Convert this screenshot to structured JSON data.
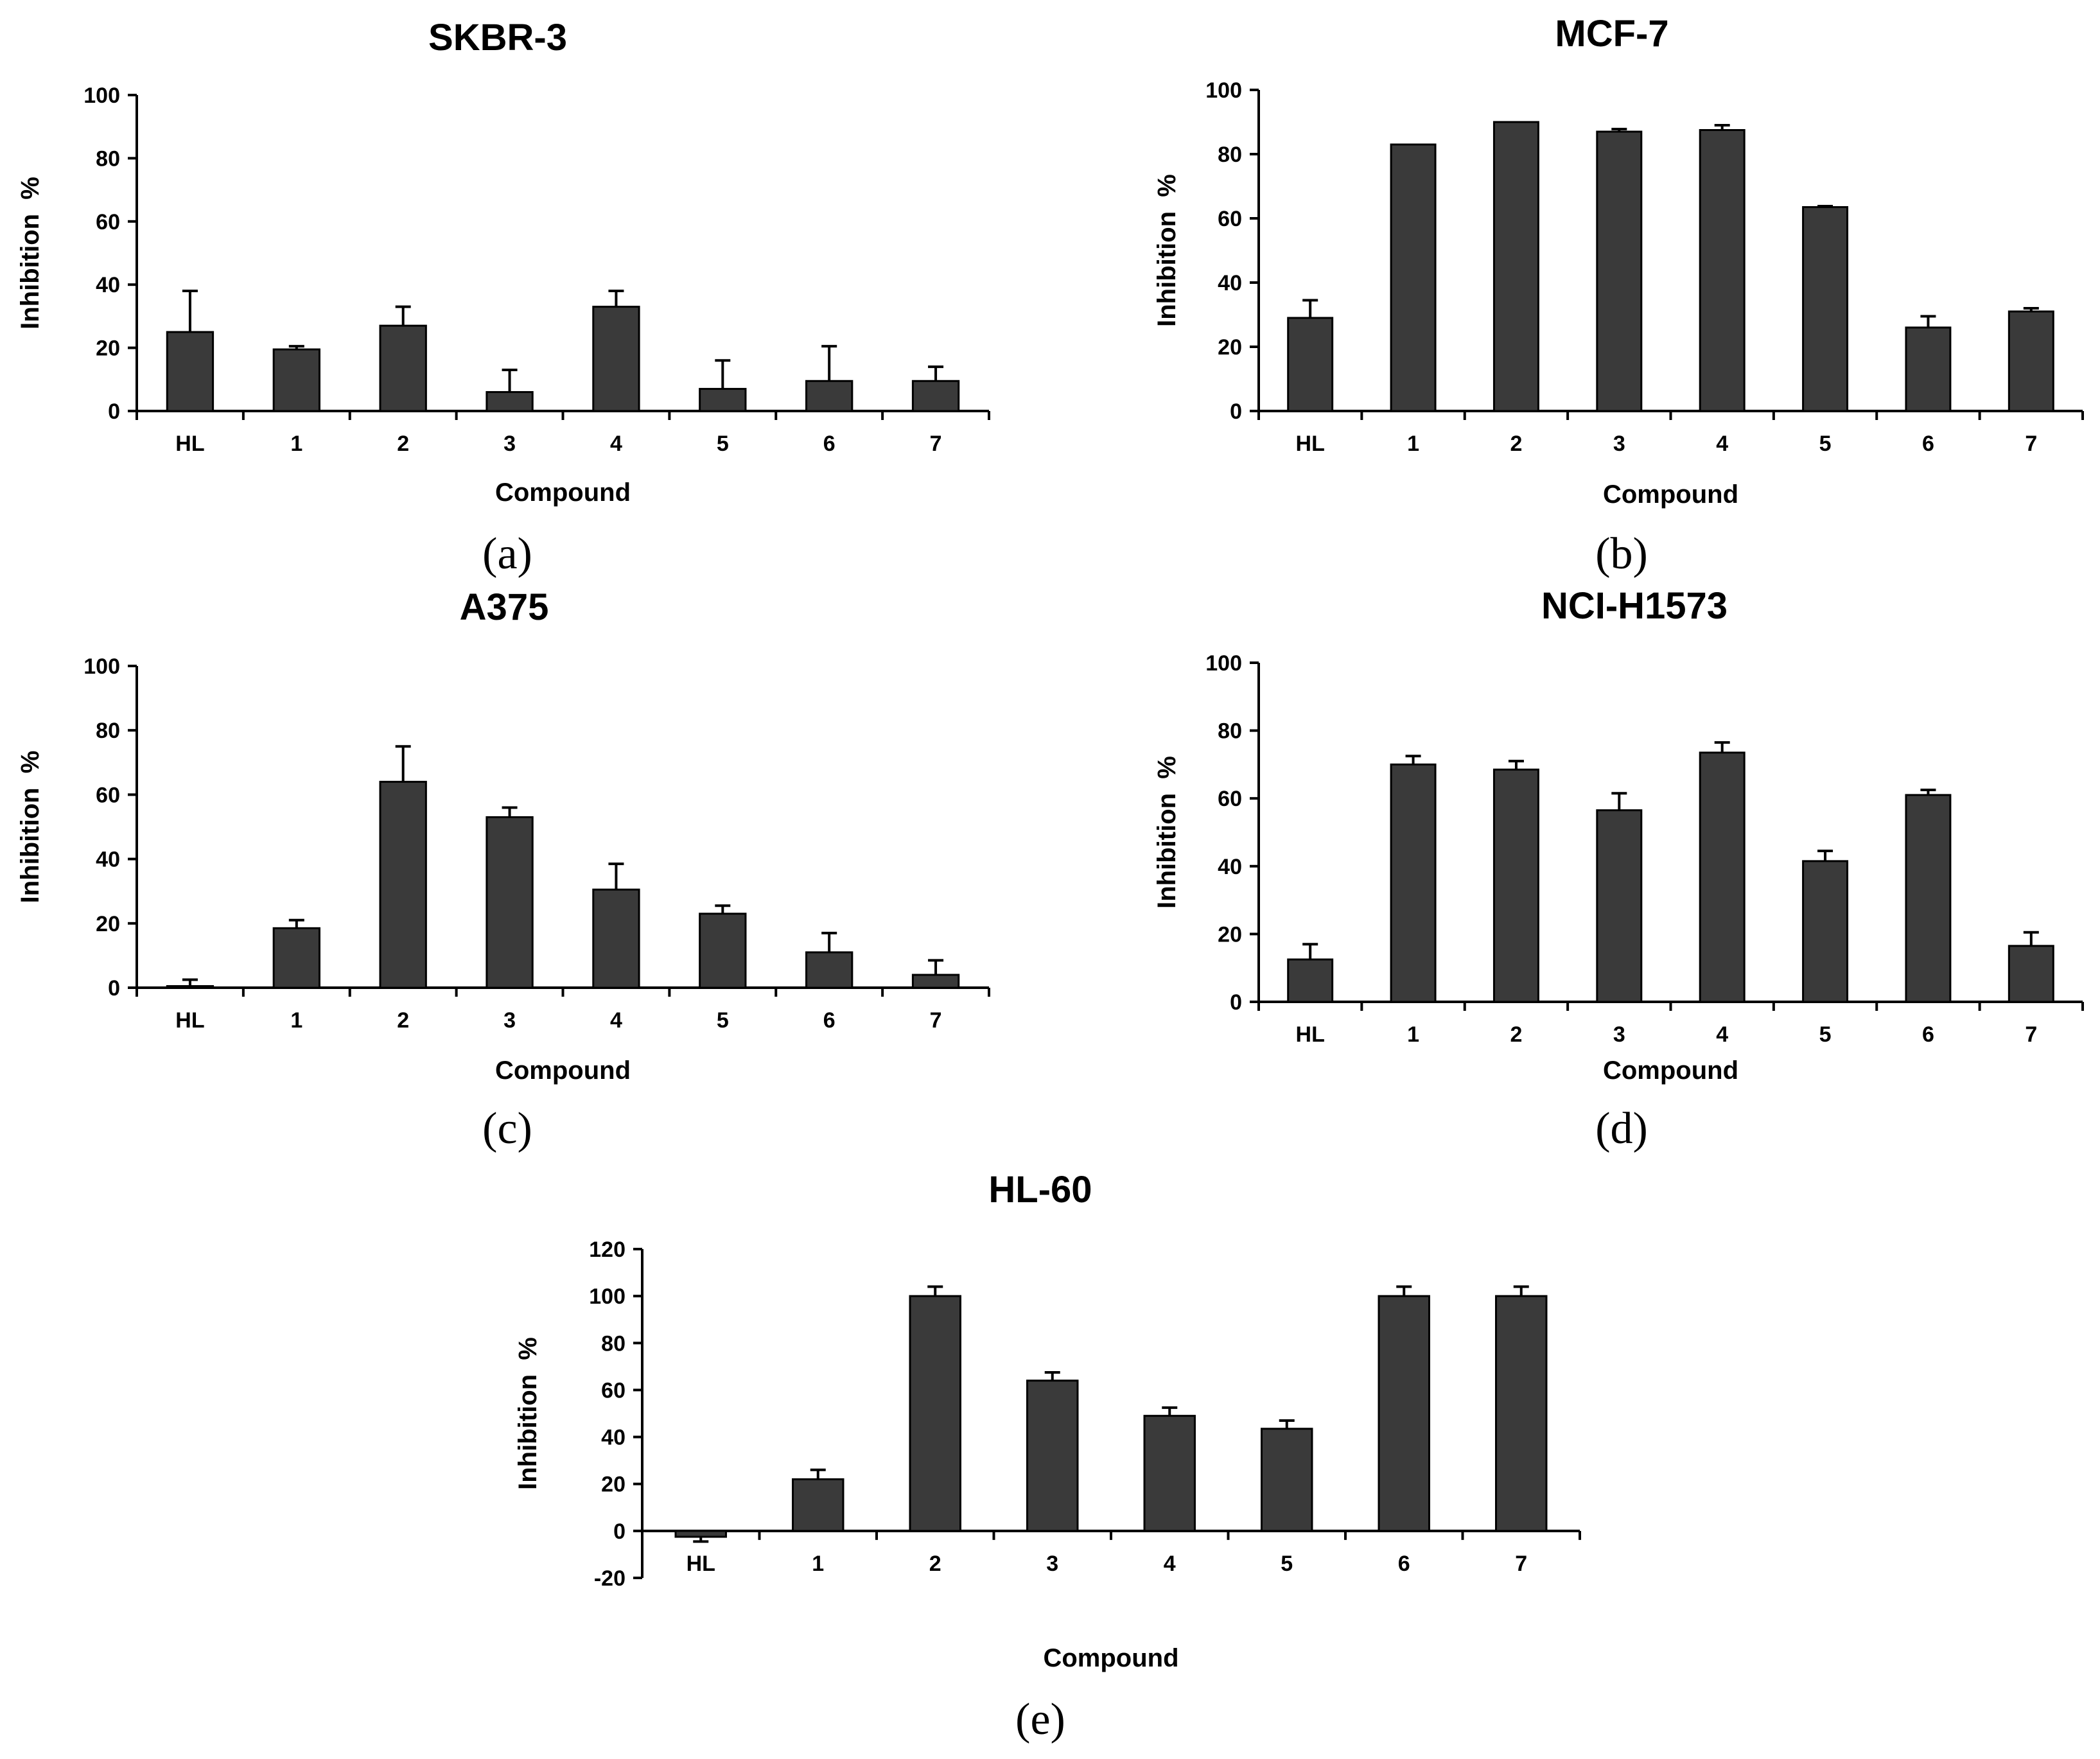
{
  "chart_data": [
    {
      "type": "bar",
      "title": "SKBR-3",
      "panel_label": "(a)",
      "xlabel": "Compound",
      "ylabel": "Inhibition  %",
      "categories": [
        "HL",
        "1",
        "2",
        "3",
        "4",
        "5",
        "6",
        "7"
      ],
      "values": [
        25,
        19.5,
        27,
        6,
        33,
        7,
        9.5,
        9.5
      ],
      "errors": [
        13,
        1,
        6,
        7,
        5,
        9,
        11,
        4.5
      ],
      "ylim": [
        0,
        100
      ],
      "yticks": [
        "0",
        "20",
        "40",
        "60",
        "80",
        "100"
      ],
      "ytick_values": [
        0,
        20,
        40,
        60,
        80,
        100
      ]
    },
    {
      "type": "bar",
      "title": "MCF-7",
      "panel_label": "(b)",
      "xlabel": "Compound",
      "ylabel": "Inhibition  %",
      "categories": [
        "HL",
        "1",
        "2",
        "3",
        "4",
        "5",
        "6",
        "7"
      ],
      "values": [
        29,
        83,
        90,
        87,
        87.5,
        63.5,
        26,
        31
      ],
      "errors": [
        5.5,
        0,
        0,
        0.8,
        1.5,
        0.3,
        3.5,
        1
      ],
      "ylim": [
        0,
        100
      ],
      "yticks": [
        "0",
        "20",
        "40",
        "60",
        "80",
        "100"
      ],
      "ytick_values": [
        0,
        20,
        40,
        60,
        80,
        100
      ]
    },
    {
      "type": "bar",
      "title": "A375",
      "panel_label": "(c)",
      "xlabel": "Compound",
      "ylabel": "Inhibition  %",
      "categories": [
        "HL",
        "1",
        "2",
        "3",
        "4",
        "5",
        "6",
        "7"
      ],
      "values": [
        0.5,
        18.5,
        64,
        53,
        30.5,
        23,
        11,
        4
      ],
      "errors": [
        2,
        2.5,
        11,
        3,
        8,
        2.5,
        6,
        4.5
      ],
      "ylim": [
        0,
        100
      ],
      "yticks": [
        "0",
        "20",
        "40",
        "60",
        "80",
        "100"
      ],
      "ytick_values": [
        0,
        20,
        40,
        60,
        80,
        100
      ]
    },
    {
      "type": "bar",
      "title": "NCI-H1573",
      "panel_label": "(d)",
      "xlabel": "Compound",
      "ylabel": "Inhibition  %",
      "categories": [
        "HL",
        "1",
        "2",
        "3",
        "4",
        "5",
        "6",
        "7"
      ],
      "values": [
        12.5,
        70,
        68.5,
        56.5,
        73.5,
        41.5,
        61,
        16.5
      ],
      "errors": [
        4.5,
        2.5,
        2.5,
        5,
        3,
        3,
        1.5,
        4
      ],
      "ylim": [
        0,
        100
      ],
      "yticks": [
        "0",
        "20",
        "40",
        "60",
        "80",
        "100"
      ],
      "ytick_values": [
        0,
        20,
        40,
        60,
        80,
        100
      ]
    },
    {
      "type": "bar",
      "title": "HL-60",
      "panel_label": "(e)",
      "xlabel": "Compound",
      "ylabel": "Inhibition  %",
      "categories": [
        "HL",
        "1",
        "2",
        "3",
        "4",
        "5",
        "6",
        "7"
      ],
      "values": [
        -2.5,
        22,
        100,
        64,
        49,
        43.5,
        100,
        100
      ],
      "errors": [
        2,
        4,
        4,
        3.5,
        3.5,
        3.5,
        4,
        4
      ],
      "ylim": [
        -20,
        120
      ],
      "yticks": [
        "-20",
        "0",
        "20",
        "40",
        "60",
        "80",
        "100",
        "120"
      ],
      "ytick_values": [
        -20,
        0,
        20,
        40,
        60,
        80,
        100,
        120
      ]
    }
  ]
}
